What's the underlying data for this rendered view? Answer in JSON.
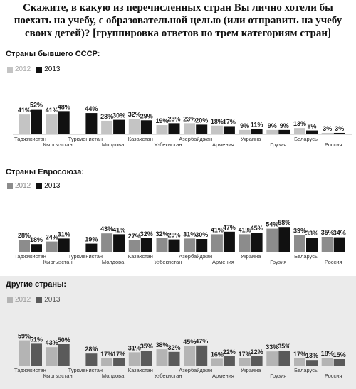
{
  "title": "Скажите, в какую из перечисленных стран Вы лично хотели бы поехать на учебу, с образовательной целью (или отправить на учебу своих детей)? [группировка ответов по трем категориям стран]",
  "legend_labels": [
    "2012",
    "2013"
  ],
  "chart_data": [
    {
      "type": "bar",
      "title": "Страны бывшего СССР:",
      "categories": [
        "Таджикистан",
        "Кыргызстан",
        "Туркменистан",
        "Молдова",
        "Казахстан",
        "Узбекистан",
        "Азербайджан",
        "Армения",
        "Украина",
        "Грузия",
        "Беларусь",
        "Россия"
      ],
      "series": [
        {
          "name": "2012",
          "values": [
            41,
            41,
            null,
            28,
            32,
            19,
            23,
            18,
            9,
            9,
            13,
            3
          ],
          "color": "#c4c4c4"
        },
        {
          "name": "2013",
          "values": [
            52,
            48,
            44,
            30,
            29,
            23,
            20,
            17,
            11,
            9,
            8,
            3
          ],
          "color": "#111111"
        }
      ],
      "labels_2012": [
        "41%",
        "41%",
        "",
        "28%",
        "32%",
        "19%",
        "23%",
        "18%",
        "9%",
        "9%",
        "13%",
        "3%"
      ],
      "labels_2013": [
        "52%",
        "48%",
        "44%",
        "30%",
        "29%",
        "23%",
        "20%",
        "17%",
        "11%",
        "9%",
        "8%",
        "3%"
      ],
      "ylim": [
        0,
        60
      ]
    },
    {
      "type": "bar",
      "title": "Страны Евросоюза:",
      "categories": [
        "Таджикистан",
        "Кыргызстан",
        "Туркменистан",
        "Молдова",
        "Казахстан",
        "Узбекистан",
        "Азербайджан",
        "Армения",
        "Украина",
        "Грузия",
        "Беларусь",
        "Россия"
      ],
      "series": [
        {
          "name": "2012",
          "values": [
            28,
            24,
            null,
            43,
            27,
            32,
            31,
            41,
            41,
            54,
            39,
            35
          ],
          "color": "#8c8c8c"
        },
        {
          "name": "2013",
          "values": [
            18,
            31,
            19,
            41,
            32,
            29,
            30,
            47,
            45,
            58,
            33,
            34
          ],
          "color": "#111111"
        }
      ],
      "labels_2012": [
        "28%",
        "24%",
        "",
        "43%",
        "27%",
        "32%",
        "31%",
        "41%",
        "41%",
        "54%",
        "39%",
        "35%"
      ],
      "labels_2013": [
        "18%",
        "31%",
        "19%",
        "41%",
        "32%",
        "29%",
        "30%",
        "47%",
        "45%",
        "58%",
        "33%",
        "34%"
      ],
      "ylim": [
        0,
        60
      ]
    },
    {
      "type": "bar",
      "title": "Другие страны:",
      "categories": [
        "Таджикистан",
        "Кыргызстан",
        "Туркменистан",
        "Молдова",
        "Казахстан",
        "Узбекистан",
        "Азербайджан",
        "Армения",
        "Украина",
        "Грузия",
        "Беларусь",
        "Россия"
      ],
      "series": [
        {
          "name": "2012",
          "values": [
            59,
            43,
            null,
            17,
            31,
            38,
            45,
            16,
            17,
            33,
            17,
            18
          ],
          "color": "#b4b4b4"
        },
        {
          "name": "2013",
          "values": [
            51,
            50,
            28,
            17,
            35,
            32,
            47,
            22,
            22,
            35,
            13,
            15
          ],
          "color": "#5a5a5a"
        }
      ],
      "labels_2012": [
        "59%",
        "43%",
        "",
        "17%",
        "31%",
        "38%",
        "45%",
        "16%",
        "17%",
        "33%",
        "17%",
        "18%"
      ],
      "labels_2013": [
        "51%",
        "50%",
        "28%",
        "17%",
        "35%",
        "32%",
        "47%",
        "22%",
        "22%",
        "35%",
        "13%",
        "15%"
      ],
      "ylim": [
        0,
        60
      ]
    }
  ]
}
